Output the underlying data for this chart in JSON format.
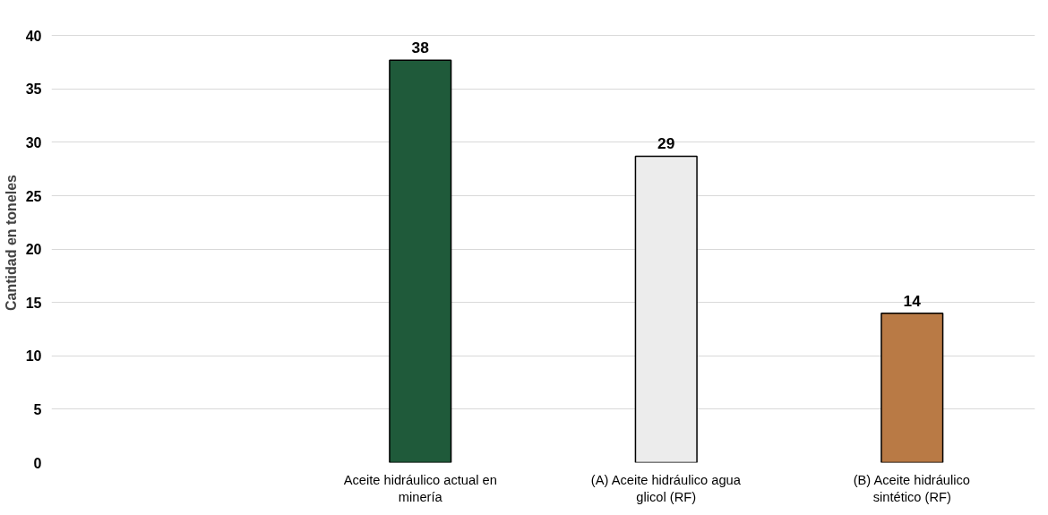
{
  "chart_data": {
    "type": "bar",
    "ylabel": "Cantidad en toneles",
    "categories": [
      null,
      "Aceite hidráulico actual en minería",
      "(A) Aceite hidráulico agua glicol (RF)",
      "(B) Aceite hidráulico sintético (RF)"
    ],
    "values": [
      null,
      37.7,
      28.7,
      14.0
    ],
    "colors": [
      "#ffffff",
      "#1f5a3a",
      "#ececec",
      "#b97a45"
    ],
    "value_labels": [
      null,
      "38",
      "29",
      "14"
    ],
    "ylim": [
      0,
      40
    ],
    "yticks": [
      0,
      5,
      10,
      15,
      20,
      25,
      30,
      35,
      40
    ],
    "grid": "y"
  }
}
